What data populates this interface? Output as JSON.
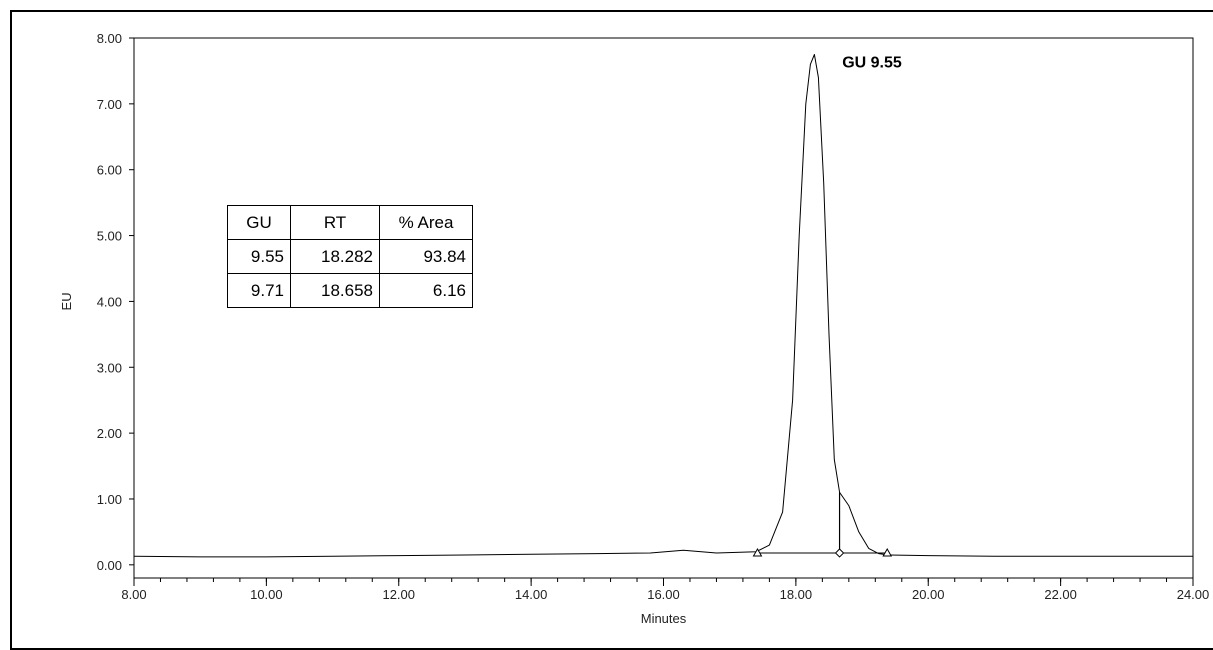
{
  "chart_data": {
    "type": "line",
    "xlabel": "Minutes",
    "ylabel": "EU",
    "xlim": [
      8.0,
      24.0
    ],
    "ylim": [
      -0.2,
      8.0
    ],
    "x_ticks": [
      "8.00",
      "10.00",
      "12.00",
      "14.00",
      "16.00",
      "18.00",
      "20.00",
      "22.00",
      "24.00"
    ],
    "y_ticks": [
      "0.00",
      "1.00",
      "2.00",
      "3.00",
      "4.00",
      "5.00",
      "6.00",
      "7.00",
      "8.00"
    ],
    "series": [
      {
        "x": [
          8.0,
          9.0,
          10.0,
          11.0,
          12.0,
          13.0,
          14.0,
          15.0,
          15.8,
          16.3,
          16.8,
          17.4,
          17.6,
          17.8,
          17.95,
          18.05,
          18.15,
          18.22,
          18.28,
          18.34,
          18.42,
          18.5,
          18.58,
          18.66,
          18.8,
          18.95,
          19.1,
          19.25,
          19.4,
          20.0,
          21.0,
          22.0,
          23.0,
          24.0
        ],
        "values": [
          0.13,
          0.12,
          0.12,
          0.13,
          0.14,
          0.15,
          0.16,
          0.17,
          0.18,
          0.22,
          0.18,
          0.2,
          0.3,
          0.8,
          2.5,
          5.0,
          7.0,
          7.6,
          7.75,
          7.4,
          5.8,
          3.5,
          1.6,
          1.1,
          0.9,
          0.5,
          0.25,
          0.17,
          0.15,
          0.14,
          0.13,
          0.13,
          0.13,
          0.13
        ]
      }
    ],
    "baseline": {
      "x": [
        17.42,
        19.38
      ],
      "y": [
        0.18,
        0.18
      ]
    },
    "markers": [
      {
        "shape": "triangle",
        "x": 17.42,
        "y": 0.18
      },
      {
        "shape": "diamond",
        "x": 18.66,
        "y": 0.18
      },
      {
        "shape": "triangle",
        "x": 19.38,
        "y": 0.18
      }
    ],
    "drop_line": {
      "x": 18.66,
      "y": 1.1
    },
    "annotations": [
      {
        "text": "GU 9.55",
        "x": 18.7,
        "y": 7.55
      }
    ],
    "grid": false,
    "table": {
      "headers": [
        "GU",
        "RT",
        "% Area"
      ],
      "rows": [
        [
          "9.55",
          "18.282",
          "93.84"
        ],
        [
          "9.71",
          "18.658",
          "6.16"
        ]
      ]
    }
  }
}
